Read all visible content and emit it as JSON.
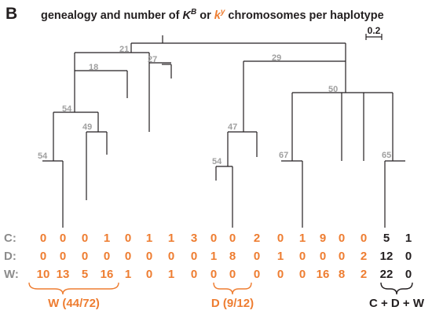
{
  "panel_letter": "B",
  "title": {
    "part1": "genealogy and number of ",
    "kb": "K",
    "kb_sup": "B",
    "or": " or ",
    "ky": "k",
    "ky_sup": "y",
    "part2": " chromosomes per haplotype"
  },
  "scale_bar_label": "0.2",
  "node_labels": [
    "21",
    "27",
    "29",
    "18",
    "50",
    "54",
    "47",
    "49",
    "67",
    "65",
    "54",
    "54"
  ],
  "rows": [
    {
      "label": "C:",
      "values": [
        "0",
        "0",
        "0",
        "1",
        "0",
        "1",
        "1",
        "3",
        "0",
        "0",
        "2",
        "0",
        "1",
        "9",
        "0",
        "0",
        "5",
        "1"
      ]
    },
    {
      "label": "D:",
      "values": [
        "0",
        "0",
        "0",
        "0",
        "0",
        "0",
        "0",
        "0",
        "1",
        "8",
        "0",
        "1",
        "0",
        "0",
        "0",
        "2",
        "12",
        "0"
      ]
    },
    {
      "label": "W:",
      "values": [
        "10",
        "13",
        "5",
        "16",
        "1",
        "0",
        "1",
        "0",
        "0",
        "0",
        "0",
        "0",
        "0",
        "16",
        "8",
        "2",
        "22",
        "0"
      ]
    }
  ],
  "groups": [
    {
      "label": "W (44/72)",
      "color": "#ee7d31"
    },
    {
      "label": "D (9/12)",
      "color": "#ee7d31"
    },
    {
      "label": "C + D + W",
      "color": "#231f20"
    }
  ],
  "colors": {
    "orange": "#ee7d31",
    "black": "#231f20",
    "gray": "#a0a0a0"
  }
}
